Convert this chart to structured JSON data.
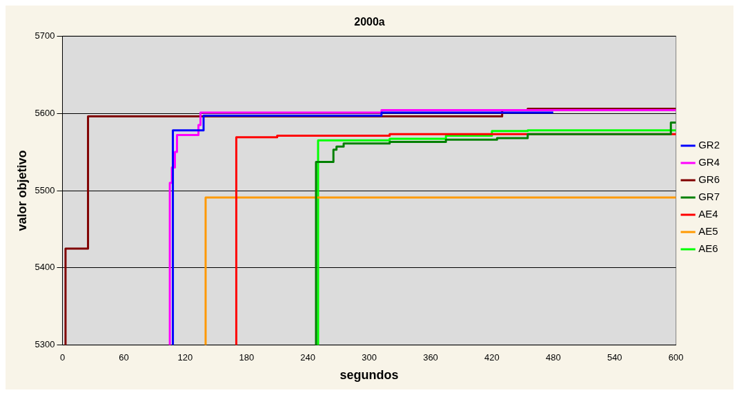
{
  "chart_data": {
    "type": "step",
    "title": "2000a",
    "xlabel": "segundos",
    "ylabel": "valor objetivo",
    "xlim": [
      0,
      600
    ],
    "xticks": [
      0,
      60,
      120,
      180,
      240,
      300,
      360,
      420,
      480,
      540,
      600
    ],
    "ylim": [
      5300,
      5700
    ],
    "yticks": [
      5300,
      5400,
      5500,
      5600,
      5700
    ],
    "grid": "y",
    "legend": "right",
    "marker": "none",
    "line_style": "solid",
    "series": [
      {
        "name": "GR2",
        "color": "#0000ff",
        "x": [
          108,
          108,
          138,
          312,
          480
        ],
        "values": [
          5300,
          5578,
          5597,
          5601,
          5601
        ]
      },
      {
        "name": "GR4",
        "color": "#ff00ff",
        "x": [
          105,
          105,
          107,
          110,
          112,
          133,
          135,
          312,
          600
        ],
        "values": [
          5300,
          5510,
          5530,
          5550,
          5572,
          5585,
          5601,
          5604,
          5604
        ]
      },
      {
        "name": "GR6",
        "color": "#800000",
        "x": [
          3,
          3,
          25,
          430,
          455,
          600
        ],
        "values": [
          5300,
          5425,
          5596,
          5604,
          5606,
          5606
        ]
      },
      {
        "name": "GR7",
        "color": "#008000",
        "x": [
          248,
          248,
          265,
          268,
          275,
          320,
          375,
          425,
          455,
          595,
          600
        ],
        "values": [
          5300,
          5537,
          5553,
          5557,
          5561,
          5563,
          5566,
          5568,
          5573,
          5588,
          5588
        ]
      },
      {
        "name": "AE4",
        "color": "#ff0000",
        "x": [
          170,
          170,
          210,
          320,
          600
        ],
        "values": [
          5300,
          5569,
          5571,
          5573,
          5573
        ]
      },
      {
        "name": "AE5",
        "color": "#ff9900",
        "x": [
          140,
          140,
          600
        ],
        "values": [
          5300,
          5491,
          5491
        ]
      },
      {
        "name": "AE6",
        "color": "#00ff00",
        "x": [
          250,
          250,
          320,
          375,
          420,
          455,
          600
        ],
        "values": [
          5300,
          5565,
          5567,
          5571,
          5577,
          5578,
          5578
        ]
      }
    ]
  }
}
